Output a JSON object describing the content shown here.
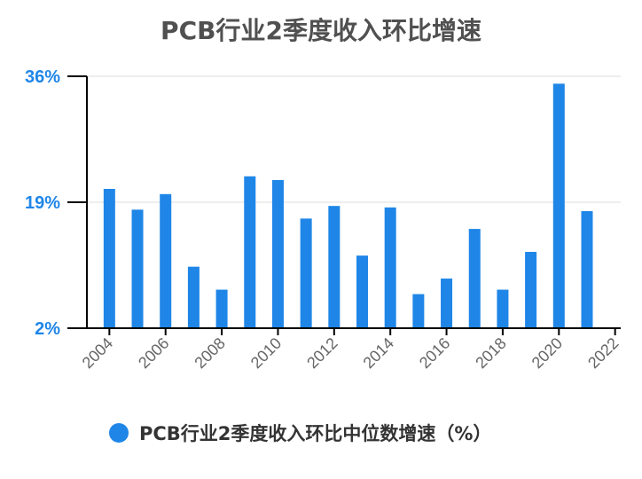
{
  "chart_data": {
    "type": "bar",
    "title": "PCB行业2季度收入环比增速",
    "legend": {
      "position": "bottom",
      "label": "PCB行业2季度收入环比中位数增速（%）"
    },
    "x": [
      2004,
      2005,
      2006,
      2007,
      2008,
      2009,
      2010,
      2011,
      2012,
      2013,
      2014,
      2015,
      2016,
      2017,
      2018,
      2019,
      2020,
      2021
    ],
    "x_tick_labels": [
      "2004",
      "2006",
      "2008",
      "2010",
      "2012",
      "2014",
      "2016",
      "2018",
      "2020",
      "2022"
    ],
    "x_tick_values": [
      2004,
      2006,
      2008,
      2010,
      2012,
      2014,
      2016,
      2018,
      2020,
      2022
    ],
    "xlim": [
      2003.2,
      2022.2
    ],
    "series": [
      {
        "name": "PCB行业2季度收入环比中位数增速（%）",
        "color": "#1f86e8",
        "values": [
          20.8,
          18.0,
          20.1,
          10.3,
          7.2,
          22.5,
          22.0,
          16.8,
          18.5,
          11.8,
          18.3,
          6.6,
          8.7,
          15.4,
          7.2,
          12.3,
          35.0,
          17.8
        ]
      }
    ],
    "y_tick_labels": [
      "36%",
      "19%",
      "2%"
    ],
    "y_tick_values": [
      36,
      19,
      2
    ],
    "ylim": [
      2,
      36
    ],
    "grid": true,
    "colors": {
      "bar": "#1f86e8",
      "ytick": "#1f86e8",
      "axis": "#000000",
      "grid": "#dddddd"
    }
  }
}
